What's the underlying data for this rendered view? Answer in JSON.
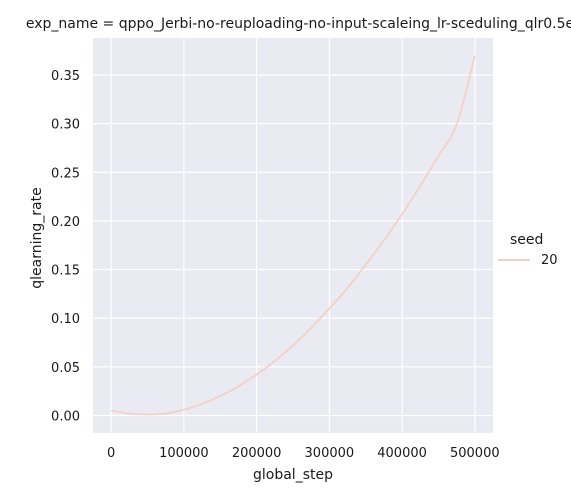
{
  "chart_data": {
    "type": "line",
    "title": "exp_name = qppo_Jerbi-no-reuploading-no-input-scaleing_lr-sceduling_qlr0.5e",
    "xlabel": "global_step",
    "ylabel": "qlearning_rate",
    "xlim": [
      -25000,
      525000
    ],
    "ylim": [
      -0.018,
      0.388
    ],
    "x_ticks": [
      0,
      100000,
      200000,
      300000,
      400000,
      500000
    ],
    "x_tick_labels": [
      "0",
      "100000",
      "200000",
      "300000",
      "400000",
      "500000"
    ],
    "y_ticks": [
      0.0,
      0.05,
      0.1,
      0.15,
      0.2,
      0.25,
      0.3,
      0.35
    ],
    "y_tick_labels": [
      "0.00",
      "0.05",
      "0.10",
      "0.15",
      "0.20",
      "0.25",
      "0.30",
      "0.35"
    ],
    "grid": true,
    "legend": {
      "title": "seed",
      "placement": "right"
    },
    "series": [
      {
        "name": "20",
        "color": "#f2d2c8",
        "x": [
          0,
          25000,
          50000,
          75000,
          100000,
          125000,
          150000,
          175000,
          200000,
          225000,
          250000,
          275000,
          300000,
          325000,
          350000,
          375000,
          400000,
          425000,
          450000,
          475000,
          500000
        ],
        "y": [
          0.005,
          0.002,
          0.001,
          0.002,
          0.006,
          0.012,
          0.02,
          0.03,
          0.042,
          0.056,
          0.072,
          0.09,
          0.11,
          0.131,
          0.155,
          0.18,
          0.207,
          0.236,
          0.267,
          0.299,
          0.37
        ]
      }
    ]
  },
  "colors": {
    "plot_background": "#eaeaf2",
    "grid": "#ffffff",
    "series": "#f2d2c8"
  }
}
